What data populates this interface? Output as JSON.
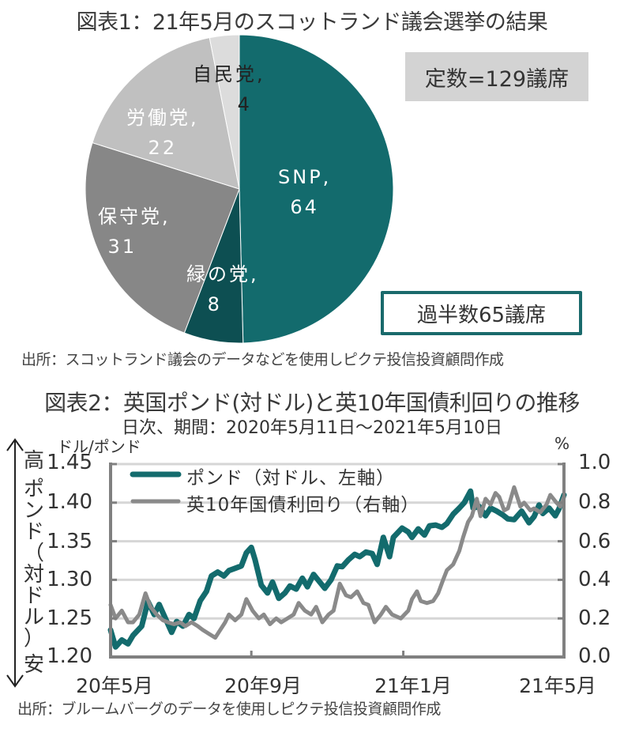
{
  "figure1": {
    "title": "図表1：21年5月のスコットランド議会選挙の結果",
    "total_box": "定数=129議席",
    "majority_box": "過半数65議席",
    "source": "出所：スコットランド議会のデータなどを使用しピクテ投信投資顧問作成"
  },
  "figure2": {
    "title": "図表2：英国ポンド(対ドル)と英10年国債利回りの推移",
    "subtitle": "日次、期間：2020年5月11日～2021年5月10日",
    "left_unit": "ドル/ポンド",
    "right_unit": "%",
    "vertical_label_top": "高",
    "vertical_label_middle": "ポンド（対ドル）",
    "vertical_label_bottom": "安",
    "source": "出所：ブルームバーグのデータを使用しピクテ投信投資顧問作成"
  },
  "colors": {
    "teal": "#136b6d",
    "dark_teal": "#0d4f52",
    "gray_dark": "#878787",
    "gray_mid": "#c0c0c0",
    "gray_light": "#dcdcdc",
    "yield_line": "#8a8a8a",
    "grid": "#d6d6d6",
    "axis": "#808080"
  },
  "chart_data": [
    {
      "type": "pie",
      "title": "図表1：21年5月のスコットランド議会選挙の結果",
      "slices": [
        {
          "name": "SNP",
          "value": 64,
          "label": "SNP,",
          "value_label": "64",
          "color": "#136b6d"
        },
        {
          "name": "緑の党",
          "value": 8,
          "label": "緑の党,",
          "value_label": "8",
          "color": "#0d4f52"
        },
        {
          "name": "保守党",
          "value": 31,
          "label": "保守党,",
          "value_label": "31",
          "color": "#878787"
        },
        {
          "name": "労働党",
          "value": 22,
          "label": "労働党,",
          "value_label": "22",
          "color": "#c0c0c0"
        },
        {
          "name": "自民党",
          "value": 4,
          "label": "自民党,",
          "value_label": "4",
          "color": "#dcdcdc"
        }
      ],
      "start": "12 o'clock",
      "direction": "clockwise",
      "total": 129
    },
    {
      "type": "line",
      "title": "図表2：英国ポンド(対ドル)と英10年国債利回りの推移",
      "subtitle": "日次、期間：2020年5月11日～2021年5月10日",
      "x_range": [
        "2020-05-11",
        "2021-05-10"
      ],
      "x_ticks": [
        {
          "date": "2020-05-11",
          "label": "20年5月"
        },
        {
          "date": "2020-09-01",
          "label": "20年9月"
        },
        {
          "date": "2021-01-01",
          "label": "21年1月"
        },
        {
          "date": "2021-05-10",
          "label": "21年5月"
        }
      ],
      "y_left": {
        "label": "ドル/ポンド",
        "range": [
          1.2,
          1.45
        ],
        "ticks": [
          "1.20",
          "1.25",
          "1.30",
          "1.35",
          "1.40",
          "1.45"
        ]
      },
      "y_right": {
        "label": "%",
        "range": [
          0.0,
          1.0
        ],
        "ticks": [
          "0.0",
          "0.2",
          "0.4",
          "0.6",
          "0.8",
          "1.0"
        ]
      },
      "grid": true,
      "legend": "top-left",
      "series": [
        {
          "name": "ポンド（対ドル、左軸）",
          "axis": "left",
          "color": "#136b6d",
          "points": [
            [
              "2020-05-11",
              1.235
            ],
            [
              "2020-05-15",
              1.213
            ],
            [
              "2020-05-20",
              1.222
            ],
            [
              "2020-05-25",
              1.217
            ],
            [
              "2020-05-29",
              1.228
            ],
            [
              "2020-06-05",
              1.24
            ],
            [
              "2020-06-10",
              1.272
            ],
            [
              "2020-06-15",
              1.255
            ],
            [
              "2020-06-19",
              1.268
            ],
            [
              "2020-06-24",
              1.25
            ],
            [
              "2020-06-29",
              1.232
            ],
            [
              "2020-07-03",
              1.246
            ],
            [
              "2020-07-08",
              1.24
            ],
            [
              "2020-07-13",
              1.255
            ],
            [
              "2020-07-17",
              1.25
            ],
            [
              "2020-07-22",
              1.273
            ],
            [
              "2020-07-27",
              1.285
            ],
            [
              "2020-07-31",
              1.305
            ],
            [
              "2020-08-05",
              1.31
            ],
            [
              "2020-08-10",
              1.305
            ],
            [
              "2020-08-14",
              1.312
            ],
            [
              "2020-08-19",
              1.315
            ],
            [
              "2020-08-24",
              1.318
            ],
            [
              "2020-08-28",
              1.335
            ],
            [
              "2020-09-01",
              1.342
            ],
            [
              "2020-09-04",
              1.326
            ],
            [
              "2020-09-09",
              1.293
            ],
            [
              "2020-09-14",
              1.283
            ],
            [
              "2020-09-18",
              1.297
            ],
            [
              "2020-09-23",
              1.276
            ],
            [
              "2020-09-28",
              1.283
            ],
            [
              "2020-10-02",
              1.292
            ],
            [
              "2020-10-07",
              1.288
            ],
            [
              "2020-10-12",
              1.302
            ],
            [
              "2020-10-16",
              1.291
            ],
            [
              "2020-10-21",
              1.307
            ],
            [
              "2020-10-26",
              1.297
            ],
            [
              "2020-10-30",
              1.289
            ],
            [
              "2020-11-04",
              1.3
            ],
            [
              "2020-11-09",
              1.318
            ],
            [
              "2020-11-13",
              1.317
            ],
            [
              "2020-11-18",
              1.326
            ],
            [
              "2020-11-23",
              1.333
            ],
            [
              "2020-11-27",
              1.33
            ],
            [
              "2020-12-02",
              1.336
            ],
            [
              "2020-12-07",
              1.334
            ],
            [
              "2020-12-11",
              1.32
            ],
            [
              "2020-12-16",
              1.355
            ],
            [
              "2020-12-21",
              1.33
            ],
            [
              "2020-12-24",
              1.355
            ],
            [
              "2020-12-31",
              1.367
            ],
            [
              "2021-01-05",
              1.362
            ],
            [
              "2021-01-08",
              1.355
            ],
            [
              "2021-01-13",
              1.366
            ],
            [
              "2021-01-18",
              1.358
            ],
            [
              "2021-01-22",
              1.37
            ],
            [
              "2021-01-27",
              1.371
            ],
            [
              "2021-02-01",
              1.368
            ],
            [
              "2021-02-05",
              1.373
            ],
            [
              "2021-02-10",
              1.385
            ],
            [
              "2021-02-15",
              1.393
            ],
            [
              "2021-02-19",
              1.4
            ],
            [
              "2021-02-24",
              1.415
            ],
            [
              "2021-02-26",
              1.393
            ],
            [
              "2021-03-03",
              1.395
            ],
            [
              "2021-03-08",
              1.383
            ],
            [
              "2021-03-12",
              1.393
            ],
            [
              "2021-03-17",
              1.389
            ],
            [
              "2021-03-22",
              1.384
            ],
            [
              "2021-03-26",
              1.379
            ],
            [
              "2021-03-31",
              1.378
            ],
            [
              "2021-04-06",
              1.389
            ],
            [
              "2021-04-12",
              1.374
            ],
            [
              "2021-04-16",
              1.382
            ],
            [
              "2021-04-20",
              1.397
            ],
            [
              "2021-04-23",
              1.386
            ],
            [
              "2021-04-28",
              1.393
            ],
            [
              "2021-05-03",
              1.383
            ],
            [
              "2021-05-06",
              1.392
            ],
            [
              "2021-05-10",
              1.41
            ]
          ]
        },
        {
          "name": "英10年国債利回り（右軸）",
          "axis": "right",
          "color": "#8a8a8a",
          "points": [
            [
              "2020-05-11",
              0.27
            ],
            [
              "2020-05-15",
              0.2
            ],
            [
              "2020-05-20",
              0.24
            ],
            [
              "2020-05-25",
              0.18
            ],
            [
              "2020-05-29",
              0.18
            ],
            [
              "2020-06-03",
              0.22
            ],
            [
              "2020-06-08",
              0.33
            ],
            [
              "2020-06-12",
              0.26
            ],
            [
              "2020-06-17",
              0.22
            ],
            [
              "2020-06-22",
              0.19
            ],
            [
              "2020-06-26",
              0.18
            ],
            [
              "2020-07-01",
              0.17
            ],
            [
              "2020-07-06",
              0.18
            ],
            [
              "2020-07-10",
              0.16
            ],
            [
              "2020-07-15",
              0.18
            ],
            [
              "2020-07-20",
              0.16
            ],
            [
              "2020-07-24",
              0.14
            ],
            [
              "2020-07-29",
              0.12
            ],
            [
              "2020-08-03",
              0.1
            ],
            [
              "2020-08-06",
              0.13
            ],
            [
              "2020-08-11",
              0.18
            ],
            [
              "2020-08-14",
              0.22
            ],
            [
              "2020-08-19",
              0.19
            ],
            [
              "2020-08-24",
              0.22
            ],
            [
              "2020-08-28",
              0.3
            ],
            [
              "2020-09-02",
              0.24
            ],
            [
              "2020-09-07",
              0.2
            ],
            [
              "2020-09-11",
              0.22
            ],
            [
              "2020-09-16",
              0.17
            ],
            [
              "2020-09-21",
              0.2
            ],
            [
              "2020-09-25",
              0.18
            ],
            [
              "2020-09-30",
              0.2
            ],
            [
              "2020-10-05",
              0.22
            ],
            [
              "2020-10-09",
              0.28
            ],
            [
              "2020-10-14",
              0.24
            ],
            [
              "2020-10-19",
              0.22
            ],
            [
              "2020-10-23",
              0.26
            ],
            [
              "2020-10-28",
              0.18
            ],
            [
              "2020-11-02",
              0.22
            ],
            [
              "2020-11-06",
              0.24
            ],
            [
              "2020-11-11",
              0.38
            ],
            [
              "2020-11-16",
              0.32
            ],
            [
              "2020-11-20",
              0.31
            ],
            [
              "2020-11-25",
              0.34
            ],
            [
              "2020-11-30",
              0.28
            ],
            [
              "2020-12-04",
              0.27
            ],
            [
              "2020-12-09",
              0.18
            ],
            [
              "2020-12-14",
              0.22
            ],
            [
              "2020-12-18",
              0.26
            ],
            [
              "2020-12-23",
              0.22
            ],
            [
              "2020-12-30",
              0.2
            ],
            [
              "2021-01-05",
              0.24
            ],
            [
              "2021-01-08",
              0.3
            ],
            [
              "2021-01-12",
              0.34
            ],
            [
              "2021-01-15",
              0.29
            ],
            [
              "2021-01-20",
              0.28
            ],
            [
              "2021-01-25",
              0.29
            ],
            [
              "2021-01-29",
              0.33
            ],
            [
              "2021-02-02",
              0.4
            ],
            [
              "2021-02-05",
              0.45
            ],
            [
              "2021-02-10",
              0.48
            ],
            [
              "2021-02-15",
              0.55
            ],
            [
              "2021-02-18",
              0.62
            ],
            [
              "2021-02-22",
              0.7
            ],
            [
              "2021-02-25",
              0.73
            ],
            [
              "2021-03-01",
              0.82
            ],
            [
              "2021-03-04",
              0.73
            ],
            [
              "2021-03-08",
              0.82
            ],
            [
              "2021-03-12",
              0.79
            ],
            [
              "2021-03-16",
              0.85
            ],
            [
              "2021-03-19",
              0.83
            ],
            [
              "2021-03-23",
              0.76
            ],
            [
              "2021-03-26",
              0.77
            ],
            [
              "2021-03-31",
              0.88
            ],
            [
              "2021-04-05",
              0.78
            ],
            [
              "2021-04-08",
              0.8
            ],
            [
              "2021-04-13",
              0.76
            ],
            [
              "2021-04-16",
              0.77
            ],
            [
              "2021-04-21",
              0.75
            ],
            [
              "2021-04-26",
              0.79
            ],
            [
              "2021-04-29",
              0.84
            ],
            [
              "2021-05-04",
              0.8
            ],
            [
              "2021-05-07",
              0.78
            ],
            [
              "2021-05-10",
              0.83
            ]
          ]
        }
      ]
    }
  ]
}
